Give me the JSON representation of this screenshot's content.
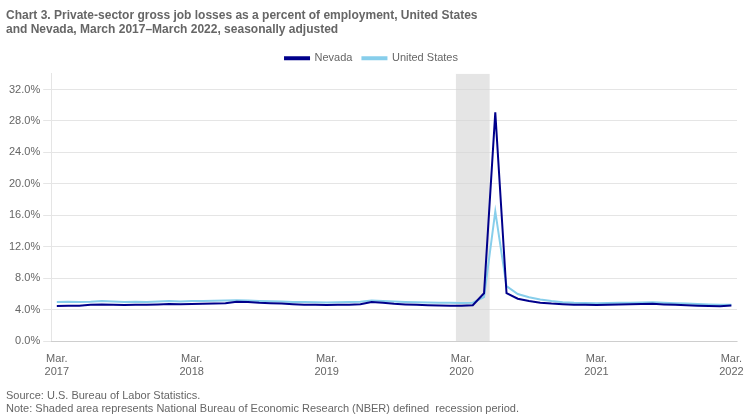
{
  "chart_data": {
    "type": "line",
    "title": "Chart 3. Private-sector gross job losses as a percent of employment, United States\nand Nevada, March 2017–March 2022, seasonally adjusted",
    "annotations": [
      "Source: U.S. Bureau of Labor Statistics.",
      "Note: Shaded area represents National Bureau of Economic Research (NBER) defined  recession period."
    ],
    "categories": [
      "Mar.\n2017",
      null,
      null,
      null,
      null,
      null,
      null,
      null,
      null,
      null,
      null,
      null,
      "Mar.\n2018",
      null,
      null,
      null,
      null,
      null,
      null,
      null,
      null,
      null,
      null,
      null,
      "Mar.\n2019",
      null,
      null,
      null,
      null,
      null,
      null,
      null,
      null,
      null,
      null,
      null,
      "Mar.\n2020",
      null,
      null,
      null,
      null,
      null,
      null,
      null,
      null,
      null,
      null,
      null,
      "Mar.\n2021",
      null,
      null,
      null,
      null,
      null,
      null,
      null,
      null,
      null,
      null,
      null,
      "Mar.\n2022"
    ],
    "series": [
      {
        "name": "Nevada",
        "color": "#00008B",
        "values": [
          0.0448,
          0.0452,
          0.0451,
          0.0462,
          0.0468,
          0.0465,
          0.046,
          0.0463,
          0.0462,
          0.0468,
          0.0472,
          0.047,
          0.0472,
          0.0475,
          0.0478,
          0.0482,
          0.0502,
          0.0498,
          0.0488,
          0.0482,
          0.0478,
          0.047,
          0.0465,
          0.0462,
          0.046,
          0.0462,
          0.0465,
          0.047,
          0.0498,
          0.0488,
          0.0475,
          0.0468,
          0.0462,
          0.0458,
          0.0455,
          0.0452,
          0.045,
          0.0458,
          0.061,
          0.291,
          0.061,
          0.054,
          0.051,
          0.049,
          0.0478,
          0.047,
          0.0465,
          0.0462,
          0.046,
          0.0465,
          0.0468,
          0.047,
          0.0472,
          0.0475,
          0.0468,
          0.0462,
          0.0458,
          0.0452,
          0.0448,
          0.0445,
          0.0455
        ]
      },
      {
        "name": "United States",
        "color": "#87CEEB",
        "values": [
          0.0498,
          0.0502,
          0.0498,
          0.0502,
          0.051,
          0.0505,
          0.0498,
          0.0502,
          0.05,
          0.0505,
          0.051,
          0.0505,
          0.051,
          0.0512,
          0.0515,
          0.0518,
          0.0522,
          0.0518,
          0.0512,
          0.0508,
          0.0505,
          0.05,
          0.0498,
          0.0495,
          0.0492,
          0.0495,
          0.0498,
          0.0502,
          0.0518,
          0.0512,
          0.0505,
          0.05,
          0.0495,
          0.0492,
          0.049,
          0.0488,
          0.0485,
          0.049,
          0.056,
          0.165,
          0.07,
          0.06,
          0.056,
          0.053,
          0.051,
          0.0495,
          0.0488,
          0.0485,
          0.0482,
          0.0485,
          0.0488,
          0.049,
          0.0492,
          0.0495,
          0.0488,
          0.0482,
          0.0478,
          0.0472,
          0.0468,
          0.0462,
          0.0462
        ]
      }
    ],
    "shading": {
      "start": 36,
      "end": 39,
      "color": "#D3D3D3"
    },
    "ylim": [
      0.0,
      0.34
    ],
    "yticks": [
      {
        "value": 0.0,
        "label": "0.0%"
      },
      {
        "value": 0.04,
        "label": "4.0%"
      },
      {
        "value": 0.08,
        "label": "8.0%"
      },
      {
        "value": 0.12,
        "label": "12.0%"
      },
      {
        "value": 0.16,
        "label": "16.0%"
      },
      {
        "value": 0.2,
        "label": "20.0%"
      },
      {
        "value": 0.24,
        "label": "24.0%"
      },
      {
        "value": 0.28,
        "label": "28.0%"
      },
      {
        "value": 0.32,
        "label": "32.0%"
      }
    ],
    "grid": true,
    "legend": "top"
  }
}
